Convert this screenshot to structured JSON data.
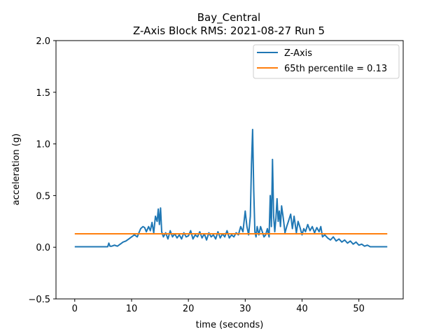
{
  "chart_data": {
    "type": "line",
    "title": "Bay_Central",
    "subtitle": "Z-Axis Block RMS: 2021-08-27 Run 5",
    "xlabel": "time (seconds)",
    "ylabel": "acceleration (g)",
    "xlim": [
      -3.3,
      57.8
    ],
    "ylim": [
      -0.5,
      2.0
    ],
    "x_ticks": [
      0,
      10,
      20,
      30,
      40,
      50
    ],
    "y_ticks": [
      -0.5,
      0.0,
      0.5,
      1.0,
      1.5,
      2.0
    ],
    "x_tick_labels": [
      "0",
      "10",
      "20",
      "30",
      "40",
      "50"
    ],
    "y_tick_labels": [
      "−0.5",
      "0.0",
      "0.5",
      "1.0",
      "1.5",
      "2.0"
    ],
    "grid": false,
    "legend_position": "top-right",
    "series": [
      {
        "name": "Z-Axis",
        "color": "#1f77b4",
        "x": [
          0,
          1,
          2,
          3,
          4,
          5,
          5.8,
          6.0,
          6.2,
          6.5,
          7.0,
          7.5,
          8.0,
          8.5,
          9.0,
          9.5,
          10.0,
          10.5,
          11.0,
          11.3,
          11.6,
          12.0,
          12.3,
          12.6,
          13.0,
          13.3,
          13.6,
          13.9,
          14.2,
          14.5,
          14.7,
          14.9,
          15.1,
          15.3,
          15.6,
          16.0,
          16.4,
          16.8,
          17.2,
          17.6,
          18.0,
          18.4,
          18.8,
          19.2,
          19.6,
          20.0,
          20.4,
          20.8,
          21.2,
          21.6,
          22.0,
          22.4,
          22.8,
          23.2,
          23.6,
          24.0,
          24.4,
          24.8,
          25.2,
          25.6,
          26.0,
          26.4,
          26.8,
          27.2,
          27.6,
          28.0,
          28.4,
          28.8,
          29.2,
          29.6,
          30.0,
          30.3,
          30.6,
          30.9,
          31.1,
          31.3,
          31.5,
          31.7,
          31.9,
          32.1,
          32.4,
          32.7,
          33.0,
          33.3,
          33.6,
          33.9,
          34.2,
          34.4,
          34.6,
          34.8,
          35.0,
          35.2,
          35.4,
          35.6,
          35.8,
          36.0,
          36.2,
          36.4,
          36.7,
          37.0,
          37.3,
          37.6,
          38.0,
          38.3,
          38.6,
          39.0,
          39.3,
          39.6,
          40.0,
          40.3,
          40.6,
          41.0,
          41.4,
          41.8,
          42.2,
          42.6,
          43.0,
          43.3,
          43.6,
          44.0,
          44.5,
          45.0,
          45.5,
          46.0,
          46.5,
          47.0,
          47.5,
          48.0,
          48.5,
          49.0,
          49.5,
          50.0,
          50.5,
          51.0,
          51.5,
          52.0,
          53.0,
          54.0,
          55.0
        ],
        "values": [
          0.005,
          0.005,
          0.005,
          0.005,
          0.005,
          0.005,
          0.005,
          0.04,
          0.01,
          0.01,
          0.02,
          0.01,
          0.03,
          0.05,
          0.06,
          0.08,
          0.1,
          0.12,
          0.1,
          0.14,
          0.18,
          0.2,
          0.19,
          0.15,
          0.2,
          0.16,
          0.24,
          0.14,
          0.3,
          0.25,
          0.37,
          0.22,
          0.38,
          0.15,
          0.1,
          0.14,
          0.08,
          0.16,
          0.1,
          0.13,
          0.09,
          0.12,
          0.08,
          0.14,
          0.1,
          0.11,
          0.16,
          0.08,
          0.12,
          0.1,
          0.15,
          0.09,
          0.13,
          0.07,
          0.14,
          0.1,
          0.12,
          0.08,
          0.15,
          0.09,
          0.13,
          0.1,
          0.16,
          0.09,
          0.12,
          0.1,
          0.14,
          0.12,
          0.2,
          0.15,
          0.35,
          0.2,
          0.12,
          0.3,
          0.8,
          1.14,
          0.55,
          0.15,
          0.1,
          0.2,
          0.12,
          0.2,
          0.15,
          0.1,
          0.12,
          0.18,
          0.1,
          0.5,
          0.2,
          0.85,
          0.3,
          0.15,
          0.28,
          0.47,
          0.25,
          0.35,
          0.2,
          0.4,
          0.28,
          0.14,
          0.2,
          0.25,
          0.32,
          0.18,
          0.3,
          0.14,
          0.25,
          0.2,
          0.12,
          0.18,
          0.15,
          0.22,
          0.16,
          0.2,
          0.14,
          0.19,
          0.15,
          0.2,
          0.1,
          0.12,
          0.09,
          0.07,
          0.1,
          0.06,
          0.08,
          0.05,
          0.07,
          0.04,
          0.06,
          0.03,
          0.05,
          0.02,
          0.03,
          0.01,
          0.02,
          0.005,
          0.005,
          0.005,
          0.005
        ]
      },
      {
        "name": "65th percentile = 0.13",
        "color": "#ff7f0e",
        "x": [
          0,
          55
        ],
        "values": [
          0.13,
          0.13
        ]
      }
    ]
  }
}
